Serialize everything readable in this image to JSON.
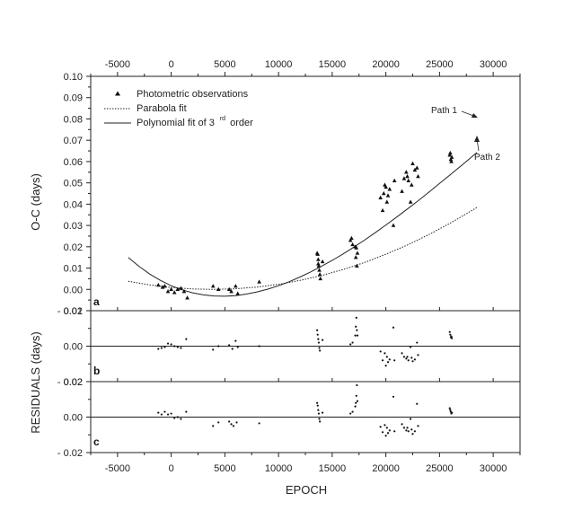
{
  "chart_data": {
    "type": "scatter",
    "xlabel": "EPOCH",
    "x_ticks": [
      -5000,
      0,
      5000,
      10000,
      15000,
      20000,
      25000,
      30000
    ],
    "xlim": [
      -7500,
      32500
    ],
    "shared_ylabel": "RESIDUALS (days)",
    "panels": [
      {
        "id": "a",
        "label": "a",
        "ylabel": "O-C (days)",
        "ylim": [
          -0.01,
          0.1
        ],
        "y_ticks": [
          -0.01,
          0.0,
          0.01,
          0.02,
          0.03,
          0.04,
          0.05,
          0.06,
          0.07,
          0.08,
          0.09,
          0.1
        ],
        "y_tick_labels": [
          "- 0.01",
          "0.00",
          "0.01",
          "0.02",
          "0.03",
          "0.04",
          "0.05",
          "0.06",
          "0.07",
          "0.08",
          "0.09",
          "0.10"
        ],
        "legend": {
          "observations": "Photometric observations",
          "parabola": "Parabola fit",
          "poly_main": "Polynomial fit of 3",
          "poly_sup": "rd",
          "poly_tail": " order"
        },
        "annotations": [
          {
            "id": "path1",
            "text": "Path 1"
          },
          {
            "id": "path2",
            "text": "Path 2"
          }
        ],
        "observations": [
          [
            -1200,
            0.002
          ],
          [
            -800,
            0.001
          ],
          [
            -600,
            0.0015
          ],
          [
            -300,
            -0.001
          ],
          [
            0,
            0.0
          ],
          [
            300,
            -0.0015
          ],
          [
            600,
            0.0
          ],
          [
            900,
            0.0005
          ],
          [
            1200,
            -0.001
          ],
          [
            1500,
            -0.004
          ],
          [
            3900,
            0.0015
          ],
          [
            4400,
            0.0
          ],
          [
            5400,
            0.0
          ],
          [
            5600,
            -0.001
          ],
          [
            6000,
            0.0015
          ],
          [
            6200,
            -0.002
          ],
          [
            8200,
            0.0035
          ],
          [
            13600,
            0.017
          ],
          [
            13650,
            0.0165
          ],
          [
            13700,
            0.014
          ],
          [
            13750,
            0.011
          ],
          [
            13800,
            0.009
          ],
          [
            13850,
            0.007
          ],
          [
            13900,
            0.005
          ],
          [
            13700,
            0.012
          ],
          [
            14100,
            0.013
          ],
          [
            16700,
            0.023
          ],
          [
            16800,
            0.024
          ],
          [
            16900,
            0.021
          ],
          [
            17150,
            0.02
          ],
          [
            17250,
            0.0195
          ],
          [
            17350,
            0.017
          ],
          [
            17200,
            0.015
          ],
          [
            17300,
            0.011
          ],
          [
            19500,
            0.043
          ],
          [
            19700,
            0.037
          ],
          [
            19800,
            0.045
          ],
          [
            19900,
            0.049
          ],
          [
            20000,
            0.048
          ],
          [
            20100,
            0.041
          ],
          [
            20200,
            0.044
          ],
          [
            20350,
            0.047
          ],
          [
            20700,
            0.03
          ],
          [
            20800,
            0.051
          ],
          [
            21500,
            0.046
          ],
          [
            21700,
            0.052
          ],
          [
            21900,
            0.055
          ],
          [
            22000,
            0.053
          ],
          [
            22100,
            0.051
          ],
          [
            22300,
            0.041
          ],
          [
            22400,
            0.049
          ],
          [
            22500,
            0.059
          ],
          [
            22700,
            0.056
          ],
          [
            22900,
            0.057
          ],
          [
            23000,
            0.053
          ],
          [
            25950,
            0.063
          ],
          [
            26000,
            0.064
          ],
          [
            26050,
            0.061
          ],
          [
            26100,
            0.06
          ],
          [
            26150,
            0.062
          ]
        ],
        "parabola_fit": [
          [
            -4000,
            0.0038
          ],
          [
            -2000,
            0.0021
          ],
          [
            0,
            0.0009
          ],
          [
            2000,
            0.0002
          ],
          [
            4000,
            0.0
          ],
          [
            6000,
            0.0003
          ],
          [
            8000,
            0.0011
          ],
          [
            10000,
            0.0024
          ],
          [
            12000,
            0.0042
          ],
          [
            14000,
            0.0065
          ],
          [
            16000,
            0.0093
          ],
          [
            18000,
            0.0126
          ],
          [
            20000,
            0.0165
          ],
          [
            22000,
            0.0208
          ],
          [
            24000,
            0.0257
          ],
          [
            26000,
            0.0311
          ],
          [
            27000,
            0.034
          ],
          [
            28500,
            0.0385
          ]
        ],
        "polynomial_fit": [
          [
            -4000,
            0.015
          ],
          [
            -3000,
            0.0108
          ],
          [
            -2000,
            0.0072
          ],
          [
            -1000,
            0.0042
          ],
          [
            0,
            0.0017
          ],
          [
            1000,
            -0.0002
          ],
          [
            2000,
            -0.0016
          ],
          [
            3000,
            -0.0026
          ],
          [
            4000,
            -0.0031
          ],
          [
            5000,
            -0.0032
          ],
          [
            6000,
            -0.0029
          ],
          [
            7000,
            -0.0022
          ],
          [
            8000,
            -0.0012
          ],
          [
            9000,
            0.0001
          ],
          [
            10000,
            0.0017
          ],
          [
            11000,
            0.0036
          ],
          [
            12000,
            0.0058
          ],
          [
            13000,
            0.0082
          ],
          [
            14000,
            0.0108
          ],
          [
            15000,
            0.0136
          ],
          [
            16000,
            0.0166
          ],
          [
            17000,
            0.0198
          ],
          [
            18000,
            0.0231
          ],
          [
            19000,
            0.0266
          ],
          [
            20000,
            0.0302
          ],
          [
            21000,
            0.0339
          ],
          [
            22000,
            0.0377
          ],
          [
            23000,
            0.0416
          ],
          [
            24000,
            0.0456
          ],
          [
            25000,
            0.0497
          ],
          [
            26000,
            0.0538
          ],
          [
            27000,
            0.058
          ],
          [
            28000,
            0.0622
          ],
          [
            28500,
            0.0643
          ]
        ]
      },
      {
        "id": "b",
        "label": "b",
        "ylim": [
          -0.02,
          0.02
        ],
        "y_ticks": [
          -0.02,
          0.0,
          0.02
        ],
        "y_tick_labels": [
          "- 0.02",
          "0.00",
          "0.02"
        ],
        "residuals": [
          [
            -1200,
            -0.0015
          ],
          [
            -900,
            -0.001
          ],
          [
            -600,
            -0.0005
          ],
          [
            -300,
            0.0015
          ],
          [
            0,
            0.001
          ],
          [
            300,
            0.0
          ],
          [
            600,
            -0.0005
          ],
          [
            900,
            -0.001
          ],
          [
            1400,
            0.004
          ],
          [
            3900,
            -0.002
          ],
          [
            4400,
            0.0
          ],
          [
            5400,
            0.0005
          ],
          [
            5700,
            -0.0015
          ],
          [
            6000,
            0.003
          ],
          [
            6200,
            -0.0005
          ],
          [
            8200,
            0.0
          ],
          [
            13600,
            0.009
          ],
          [
            13650,
            0.0065
          ],
          [
            13700,
            0.004
          ],
          [
            13750,
            0.002
          ],
          [
            13800,
            -0.001
          ],
          [
            13850,
            -0.0025
          ],
          [
            14100,
            0.0035
          ],
          [
            16700,
            0.001
          ],
          [
            16900,
            0.002
          ],
          [
            17150,
            0.006
          ],
          [
            17200,
            0.011
          ],
          [
            17250,
            0.016
          ],
          [
            17300,
            0.009
          ],
          [
            17350,
            0.006
          ],
          [
            19500,
            -0.003
          ],
          [
            19700,
            -0.008
          ],
          [
            19900,
            -0.004
          ],
          [
            20000,
            -0.011
          ],
          [
            20100,
            -0.006
          ],
          [
            20200,
            -0.009
          ],
          [
            20350,
            -0.0075
          ],
          [
            20700,
            0.0105
          ],
          [
            20800,
            -0.008
          ],
          [
            21500,
            -0.004
          ],
          [
            21700,
            -0.006
          ],
          [
            21900,
            -0.007
          ],
          [
            22000,
            -0.006
          ],
          [
            22100,
            -0.008
          ],
          [
            22300,
            -0.0005
          ],
          [
            22400,
            -0.0065
          ],
          [
            22500,
            -0.0085
          ],
          [
            22700,
            -0.0075
          ],
          [
            22900,
            0.002
          ],
          [
            23000,
            -0.005
          ],
          [
            25950,
            0.008
          ],
          [
            26000,
            0.0065
          ],
          [
            26050,
            0.005
          ],
          [
            26100,
            0.0055
          ],
          [
            26150,
            0.0045
          ]
        ]
      },
      {
        "id": "c",
        "label": "c",
        "ylim": [
          -0.02,
          0.02
        ],
        "y_ticks": [
          -0.02,
          0.0,
          0.02
        ],
        "y_tick_labels": [
          "- 0.02",
          "0.00",
          "0.02"
        ],
        "residuals": [
          [
            -1200,
            0.0025
          ],
          [
            -900,
            0.0015
          ],
          [
            -600,
            0.003
          ],
          [
            -300,
            0.0015
          ],
          [
            0,
            0.002
          ],
          [
            300,
            -0.0005
          ],
          [
            600,
            0.0
          ],
          [
            900,
            -0.001
          ],
          [
            1400,
            0.003
          ],
          [
            3900,
            -0.005
          ],
          [
            4400,
            -0.003
          ],
          [
            5400,
            -0.0025
          ],
          [
            5600,
            -0.004
          ],
          [
            5800,
            -0.005
          ],
          [
            6100,
            -0.003
          ],
          [
            8200,
            -0.0035
          ],
          [
            13600,
            0.008
          ],
          [
            13650,
            0.0065
          ],
          [
            13700,
            0.004
          ],
          [
            13750,
            0.002
          ],
          [
            13800,
            -0.001
          ],
          [
            13850,
            -0.0025
          ],
          [
            14100,
            0.0025
          ],
          [
            16700,
            0.002
          ],
          [
            16900,
            0.003
          ],
          [
            17150,
            0.006
          ],
          [
            17200,
            0.008
          ],
          [
            17250,
            0.012
          ],
          [
            17300,
            0.018
          ],
          [
            17350,
            0.009
          ],
          [
            19500,
            -0.0055
          ],
          [
            19700,
            -0.0085
          ],
          [
            19900,
            -0.0045
          ],
          [
            20000,
            -0.0105
          ],
          [
            20100,
            -0.006
          ],
          [
            20200,
            -0.009
          ],
          [
            20350,
            -0.0075
          ],
          [
            20700,
            0.0115
          ],
          [
            20800,
            -0.008
          ],
          [
            21500,
            -0.004
          ],
          [
            21700,
            -0.006
          ],
          [
            21900,
            -0.0075
          ],
          [
            22000,
            -0.006
          ],
          [
            22100,
            -0.008
          ],
          [
            22300,
            -0.001
          ],
          [
            22400,
            -0.007
          ],
          [
            22500,
            -0.0095
          ],
          [
            22700,
            -0.008
          ],
          [
            22900,
            0.0075
          ],
          [
            23000,
            -0.005
          ],
          [
            25950,
            0.005
          ],
          [
            26000,
            0.004
          ],
          [
            26050,
            0.003
          ],
          [
            26100,
            0.002
          ],
          [
            26150,
            0.0025
          ]
        ]
      }
    ]
  }
}
